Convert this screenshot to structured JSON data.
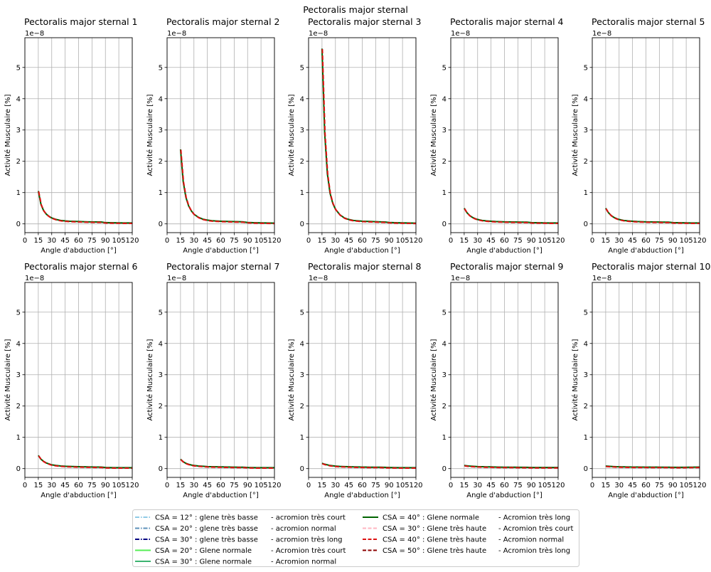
{
  "suptitle": "Pectoralis major sternal",
  "chart_data": {
    "type": "line",
    "xlabel": "Angle d'abduction [°]",
    "ylabel": "Activité Musculaire [%]",
    "y_scale_label": "1e−8",
    "xlim": [
      0,
      120
    ],
    "ylim": [
      -0.28,
      5.95
    ],
    "xticks": [
      0,
      15,
      30,
      45,
      60,
      75,
      90,
      105,
      120
    ],
    "yticks": [
      0,
      1,
      2,
      3,
      4,
      5
    ],
    "grid": true,
    "x": [
      15,
      18,
      21,
      24,
      27,
      30,
      35,
      40,
      45,
      50,
      60,
      70,
      80,
      85,
      90,
      100,
      110,
      120
    ],
    "panels": [
      {
        "title": "Pectoralis major sternal 1",
        "values": [
          1.05,
          0.62,
          0.42,
          0.31,
          0.24,
          0.19,
          0.14,
          0.11,
          0.095,
          0.085,
          0.075,
          0.065,
          0.06,
          0.06,
          0.04,
          0.035,
          0.03,
          0.03
        ]
      },
      {
        "title": "Pectoralis major sternal 2",
        "values": [
          2.38,
          1.35,
          0.85,
          0.58,
          0.42,
          0.31,
          0.21,
          0.15,
          0.12,
          0.1,
          0.085,
          0.075,
          0.07,
          0.065,
          0.045,
          0.035,
          0.03,
          0.025
        ]
      },
      {
        "title": "Pectoralis major sternal 3",
        "values": [
          5.6,
          2.9,
          1.6,
          0.98,
          0.66,
          0.47,
          0.29,
          0.19,
          0.14,
          0.11,
          0.085,
          0.075,
          0.065,
          0.06,
          0.045,
          0.035,
          0.03,
          0.025
        ]
      },
      {
        "title": "Pectoralis major sternal 4",
        "values": [
          0.5,
          0.36,
          0.27,
          0.21,
          0.17,
          0.14,
          0.11,
          0.095,
          0.085,
          0.075,
          0.065,
          0.06,
          0.055,
          0.055,
          0.04,
          0.035,
          0.03,
          0.03
        ]
      },
      {
        "title": "Pectoralis major sternal 5",
        "values": [
          0.5,
          0.36,
          0.27,
          0.21,
          0.17,
          0.14,
          0.11,
          0.095,
          0.085,
          0.075,
          0.065,
          0.06,
          0.055,
          0.055,
          0.04,
          0.035,
          0.03,
          0.03
        ]
      },
      {
        "title": "Pectoralis major sternal 6",
        "values": [
          0.42,
          0.3,
          0.23,
          0.18,
          0.15,
          0.12,
          0.1,
          0.085,
          0.075,
          0.07,
          0.06,
          0.055,
          0.05,
          0.05,
          0.035,
          0.03,
          0.03,
          0.03
        ]
      },
      {
        "title": "Pectoralis major sternal 7",
        "values": [
          0.3,
          0.22,
          0.17,
          0.14,
          0.115,
          0.1,
          0.085,
          0.075,
          0.065,
          0.06,
          0.055,
          0.05,
          0.045,
          0.045,
          0.035,
          0.03,
          0.03,
          0.03
        ]
      },
      {
        "title": "Pectoralis major sternal 8",
        "values": [
          0.17,
          0.14,
          0.12,
          0.1,
          0.09,
          0.08,
          0.07,
          0.065,
          0.06,
          0.055,
          0.05,
          0.045,
          0.045,
          0.04,
          0.035,
          0.03,
          0.03,
          0.03
        ]
      },
      {
        "title": "Pectoralis major sternal 9",
        "values": [
          0.1,
          0.09,
          0.08,
          0.075,
          0.07,
          0.065,
          0.06,
          0.055,
          0.055,
          0.05,
          0.045,
          0.045,
          0.04,
          0.04,
          0.035,
          0.035,
          0.035,
          0.035
        ]
      },
      {
        "title": "Pectoralis major sternal 10",
        "values": [
          0.08,
          0.075,
          0.07,
          0.065,
          0.06,
          0.058,
          0.055,
          0.052,
          0.05,
          0.05,
          0.048,
          0.046,
          0.045,
          0.045,
          0.04,
          0.04,
          0.045,
          0.05
        ]
      }
    ],
    "legend": {
      "placement": "bottom-center",
      "entries": [
        {
          "label": "CSA = 12° : glene très basse",
          "suffix": "-  acromion très court",
          "color": "#8ecae6",
          "style": "dashdot"
        },
        {
          "label": "CSA = 20° : glene très basse",
          "suffix": "-  acromion normal",
          "color": "#5b8fb9",
          "style": "dashdot"
        },
        {
          "label": "CSA = 30° : glene très basse",
          "suffix": "-  acromion très long",
          "color": "#000080",
          "style": "dashdot"
        },
        {
          "label": "CSA = 20° : Glene normale",
          "suffix": "-  Acromion très court",
          "color": "#55ee55",
          "style": "solid"
        },
        {
          "label": "CSA = 30° : Glene normale",
          "suffix": "-  Acromion normal",
          "color": "#3cb371",
          "style": "solid"
        },
        {
          "label": "CSA = 40° : Glene normale",
          "suffix": "-  Acromion très long",
          "color": "#006400",
          "style": "solid"
        },
        {
          "label": "CSA = 30° : Glene très haute",
          "suffix": "-  Acromion très court",
          "color": "#ffb6c1",
          "style": "dashed"
        },
        {
          "label": "CSA = 40° : Glene très haute",
          "suffix": "-  Acromion normal",
          "color": "#dd1111",
          "style": "dashed"
        },
        {
          "label": "CSA = 50° : Glene très haute",
          "suffix": "-  Acromion très long",
          "color": "#8b0000",
          "style": "dashed"
        }
      ]
    }
  }
}
